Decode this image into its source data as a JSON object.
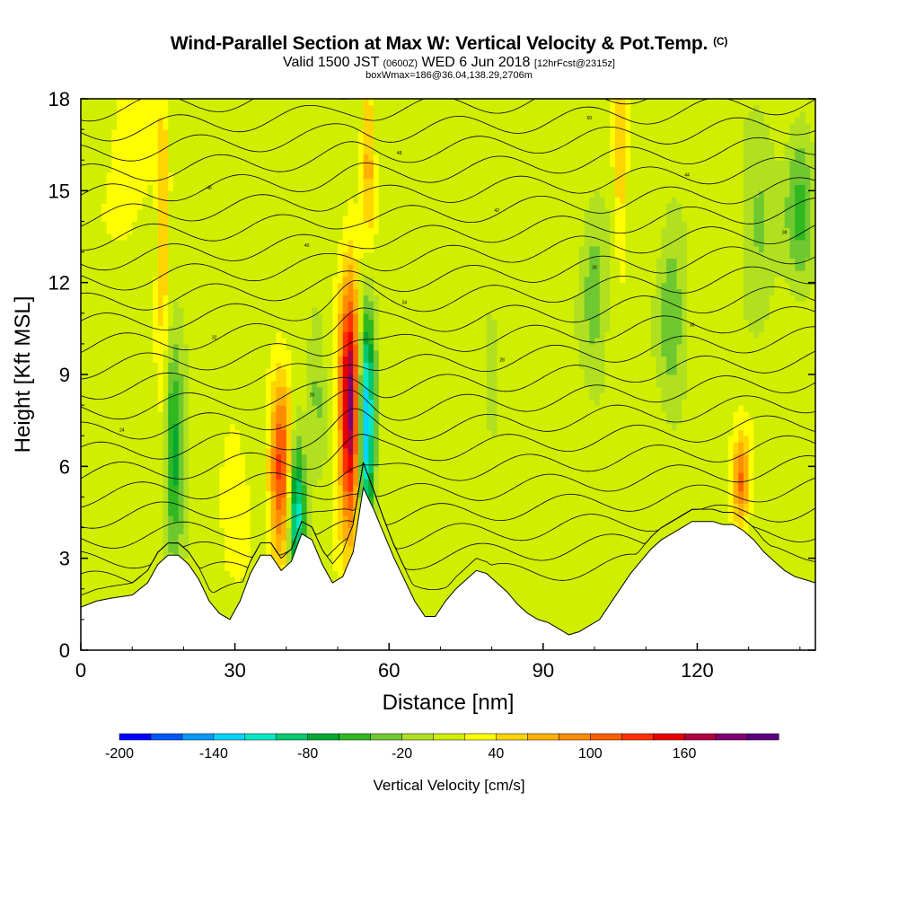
{
  "title": {
    "main": "Wind-Parallel Section at Max W: Vertical Velocity & Pot.Temp.",
    "copyright": "(C)",
    "valid_prefix": "Valid 1500 JST",
    "zulu": "(0600Z)",
    "date": "WED 6 Jun 2018",
    "forecast": "[12hrFcst@2315z]",
    "box_info": "boxWmax=186@36.04,138.29,2706m"
  },
  "chart_data": {
    "type": "heatmap",
    "xlabel": "Distance [nm]",
    "ylabel": "Height [Kft MSL]",
    "xlim": [
      0,
      143
    ],
    "ylim": [
      0,
      18
    ],
    "xticks": [
      0,
      30,
      60,
      90,
      120
    ],
    "xtick_labels": [
      "0",
      "30",
      "60",
      "90",
      "120"
    ],
    "yticks": [
      0,
      3,
      6,
      9,
      12,
      15,
      18
    ],
    "ytick_labels": [
      "0",
      "3",
      "6",
      "9",
      "12",
      "15",
      "18"
    ],
    "terrain": {
      "x": [
        0,
        3,
        6,
        10,
        13,
        15,
        17,
        19,
        21,
        23,
        25,
        27,
        29,
        31,
        33,
        35,
        37,
        39,
        41,
        43,
        45,
        47,
        49,
        51,
        53,
        55,
        57,
        59,
        61,
        63,
        65,
        67,
        69,
        71,
        73,
        75,
        77,
        79,
        81,
        83,
        85,
        87,
        89,
        91,
        93,
        95,
        97,
        99,
        101,
        103,
        105,
        107,
        109,
        111,
        113,
        115,
        117,
        119,
        121,
        123,
        125,
        127,
        129,
        131,
        133,
        135,
        137,
        139,
        141,
        143
      ],
      "height": [
        1.4,
        1.6,
        1.7,
        1.8,
        2.2,
        2.8,
        3.1,
        3.1,
        2.8,
        2.3,
        1.6,
        1.2,
        1.0,
        1.6,
        2.5,
        3.1,
        3.1,
        2.6,
        2.9,
        3.8,
        3.6,
        2.8,
        2.2,
        2.4,
        3.2,
        5.3,
        4.6,
        3.8,
        3.0,
        2.3,
        1.6,
        1.1,
        1.1,
        1.6,
        2.0,
        2.3,
        2.6,
        2.5,
        2.2,
        1.9,
        1.5,
        1.2,
        1.0,
        0.9,
        0.7,
        0.5,
        0.6,
        0.8,
        1.0,
        1.5,
        2.0,
        2.5,
        2.9,
        3.3,
        3.6,
        3.8,
        4.0,
        4.2,
        4.2,
        4.2,
        4.1,
        4.1,
        3.9,
        3.6,
        3.2,
        2.9,
        2.6,
        2.4,
        2.3,
        2.2
      ]
    },
    "velocity_features": [
      {
        "x": 52.5,
        "z": 8.0,
        "w": 186,
        "sx": 1.5,
        "sz": 2.8
      },
      {
        "x": 55.5,
        "z": 7.5,
        "w": -175,
        "sx": 1.2,
        "sz": 2.5
      },
      {
        "x": 39,
        "z": 5.8,
        "w": 115,
        "sx": 1.5,
        "sz": 2.2
      },
      {
        "x": 42,
        "z": 4.5,
        "w": -130,
        "sx": 1.2,
        "sz": 1.8
      },
      {
        "x": 18,
        "z": 6.5,
        "w": -85,
        "sx": 1.5,
        "sz": 2.5
      },
      {
        "x": 16,
        "z": 7.0,
        "w": 30,
        "sx": 1.0,
        "sz": 2.0
      },
      {
        "x": 128.5,
        "z": 5.5,
        "w": 90,
        "sx": 1.2,
        "sz": 1.0
      },
      {
        "x": 16,
        "z": 13.8,
        "w": 50,
        "sx": 0.8,
        "sz": 3.0
      },
      {
        "x": 56,
        "z": 16.0,
        "w": 60,
        "sx": 0.8,
        "sz": 2.0
      },
      {
        "x": 105,
        "z": 16.5,
        "w": 50,
        "sx": 0.8,
        "sz": 2.5
      },
      {
        "x": 100,
        "z": 11.5,
        "w": -45,
        "sx": 2.0,
        "sz": 2.0
      },
      {
        "x": 115,
        "z": 11.0,
        "w": -45,
        "sx": 2.0,
        "sz": 2.5
      },
      {
        "x": 132,
        "z": 14.0,
        "w": -40,
        "sx": 2.5,
        "sz": 2.0
      },
      {
        "x": 140,
        "z": 14.5,
        "w": -55,
        "sx": 2.0,
        "sz": 2.0
      },
      {
        "x": 80,
        "z": 8.8,
        "w": -30,
        "sx": 1.0,
        "sz": 1.5
      },
      {
        "x": 46,
        "z": 8.5,
        "w": -35,
        "sx": 1.2,
        "sz": 2.0
      },
      {
        "x": 30,
        "z": 5.5,
        "w": 20,
        "sx": 2.0,
        "sz": 2.0
      },
      {
        "x": 10,
        "z": 16.5,
        "w": 25,
        "sx": 3.0,
        "sz": 2.0
      }
    ],
    "isentropes": {
      "count": 24,
      "base_heights": [
        1.5,
        2.2,
        2.9,
        3.6,
        4.3,
        5.0,
        5.7,
        6.4,
        7.1,
        7.8,
        8.5,
        9.2,
        9.9,
        10.6,
        11.3,
        12.0,
        12.7,
        13.4,
        14.1,
        14.8,
        15.5,
        16.2,
        16.9,
        17.6
      ],
      "slope_per_nm": 0.012,
      "labels": [
        "24",
        "26",
        "28",
        "30",
        "32",
        "34",
        "36",
        "38",
        "40",
        "42",
        "44",
        "46",
        "48",
        "50"
      ]
    },
    "colorbar": {
      "title": "Vertical Velocity [cm/s]",
      "min": -200,
      "max": 200,
      "step": 20,
      "tick_values": [
        -200,
        -140,
        -80,
        -20,
        40,
        100,
        160
      ],
      "tick_labels": [
        "-200",
        "-140",
        "-80",
        "-20",
        "40",
        "100",
        "160"
      ],
      "colors": [
        "#0000ff",
        "#0055ff",
        "#0099ff",
        "#00d4ff",
        "#00e8c4",
        "#00c870",
        "#00a832",
        "#30b820",
        "#70c830",
        "#b0e020",
        "#d0ee00",
        "#ffff00",
        "#ffd400",
        "#ffb000",
        "#ff8c00",
        "#ff6000",
        "#ff3000",
        "#e80000",
        "#b00040",
        "#800070",
        "#5a0080"
      ]
    }
  }
}
